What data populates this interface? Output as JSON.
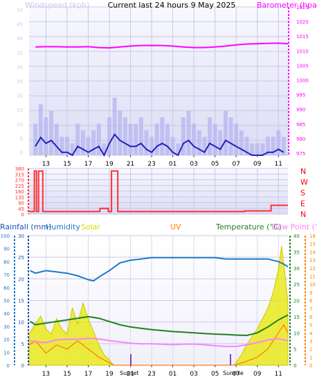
{
  "title": "Current last 24 hours 9 May 2025",
  "charts": [
    {
      "id": "wind_baro",
      "left_label": "Windspeed (kph)",
      "right_label": "Barometer (hpa)",
      "left_ticks": [
        "50",
        "45",
        "40",
        "35",
        "30",
        "25",
        "20",
        "15",
        "10",
        "5",
        "0"
      ],
      "right_ticks": [
        "1025",
        "1020",
        "1015",
        "1010",
        "1005",
        "1000",
        "995",
        "990",
        "985",
        "980",
        "975"
      ],
      "x_ticks": [
        "13",
        "15",
        "17",
        "19",
        "21",
        "23",
        "01",
        "03",
        "05",
        "07",
        "09",
        "11"
      ]
    },
    {
      "id": "direction",
      "left_ticks": [
        "360",
        "315",
        "270",
        "225",
        "180",
        "135",
        "90",
        "45",
        "0"
      ],
      "compass": [
        "N",
        "W",
        "S",
        "E",
        "N"
      ],
      "x_ticks": [
        "13",
        "15",
        "17",
        "19",
        "21",
        "23",
        "01",
        "03",
        "05",
        "07",
        "09",
        "11"
      ]
    },
    {
      "id": "rain_temp",
      "legend": {
        "rainfall": "Rainfall (mm)",
        "humidity": "Humidity",
        "solar": "Solar",
        "uv": "UV",
        "temperature": "Temperature (°C)",
        "dewpoint": "Dew Point (°C)"
      },
      "humidity_ticks": [
        "100",
        "90",
        "80",
        "70",
        "60",
        "50",
        "40",
        "30",
        "20",
        "10",
        "0"
      ],
      "rain_ticks": [
        "30",
        "25",
        "20",
        "15",
        "10",
        "5",
        "0"
      ],
      "temp_ticks": [
        "40",
        "35",
        "30",
        "25",
        "20",
        "15",
        "10",
        "5",
        "0"
      ],
      "uv_ticks": [
        "16",
        "15",
        "14",
        "13",
        "12",
        "11",
        "10",
        "9",
        "8",
        "7",
        "6",
        "5",
        "4",
        "3",
        "2",
        "1",
        "0"
      ],
      "x_ticks": [
        "13",
        "15",
        "17",
        "19",
        "21",
        "23",
        "01",
        "03",
        "05",
        "07",
        "09",
        "11"
      ],
      "sunset_label": "Sunset",
      "sunrise_label": "Sunrise"
    }
  ],
  "chart_data": [
    {
      "type": "line",
      "title": "Current last 24 hours 9 May 2025",
      "x_unit": "hour",
      "x_range": [
        11.4,
        35.9
      ],
      "y_left_range": [
        0,
        50
      ],
      "y_right_range": [
        975,
        1025
      ],
      "series": [
        {
          "name": "Windspeed (kph)",
          "axis": "left",
          "x": [
            12,
            12.5,
            13,
            13.5,
            14,
            14.5,
            15,
            15.5,
            16,
            16.5,
            17,
            17.5,
            18,
            18.5,
            19,
            19.5,
            20,
            20.5,
            21,
            21.5,
            22,
            22.5,
            23,
            23.5,
            24,
            24.5,
            25,
            25.5,
            26,
            26.5,
            27,
            27.5,
            28,
            28.5,
            29,
            29.5,
            30,
            30.5,
            31,
            31.5,
            32,
            32.5,
            33,
            33.5,
            34,
            34.5,
            35,
            35.5
          ],
          "values": [
            3,
            6,
            4,
            5,
            3,
            1,
            1,
            0,
            3,
            2,
            1,
            2,
            3,
            0,
            4,
            7,
            5,
            4,
            3,
            3,
            4,
            2,
            1,
            3,
            4,
            3,
            1,
            0,
            4,
            5,
            3,
            2,
            1,
            4,
            3,
            2,
            5,
            4,
            3,
            2,
            1,
            0,
            0,
            0,
            1,
            1,
            2,
            1
          ],
          "color": "#2020c0"
        },
        {
          "name": "Barometer (hpa)",
          "axis": "right",
          "x": [
            12,
            13,
            14,
            15,
            16,
            17,
            18,
            19,
            20,
            21,
            22,
            23,
            24,
            25,
            26,
            27,
            28,
            29,
            30,
            31,
            32,
            33,
            34,
            35,
            35.9
          ],
          "values": [
            1011.5,
            1011.6,
            1011.6,
            1011.5,
            1011.5,
            1011.6,
            1011.3,
            1011.2,
            1011.5,
            1011.8,
            1012.0,
            1012.0,
            1012.0,
            1011.8,
            1011.5,
            1011.3,
            1011.3,
            1011.5,
            1011.8,
            1012.2,
            1012.5,
            1012.6,
            1012.7,
            1012.8,
            1012.6
          ],
          "color": "#ff00ff"
        }
      ]
    },
    {
      "type": "line",
      "title": "",
      "x_unit": "hour",
      "x_range": [
        11.4,
        35.9
      ],
      "y_range": [
        0,
        360
      ],
      "series": [
        {
          "name": "",
          "x": [
            11.4,
            11.9,
            11.9,
            12.1,
            12.1,
            12.3,
            12.3,
            12.7,
            12.7,
            12.9,
            12.9,
            13.3,
            13.3,
            14.7,
            14.7,
            18.1,
            18.1,
            18.9,
            18.9,
            19.2,
            19.2,
            19.8,
            19.8,
            20.0,
            20.0,
            31.8,
            31.8,
            34.3,
            34.3,
            35.9
          ],
          "values": [
            20,
            20,
            340,
            340,
            20,
            20,
            340,
            340,
            20,
            20,
            20,
            20,
            20,
            20,
            20,
            20,
            45,
            45,
            20,
            20,
            340,
            340,
            20,
            20,
            20,
            20,
            25,
            25,
            70,
            70
          ],
          "color": "#ff3030"
        }
      ]
    },
    {
      "type": "line",
      "title": "",
      "x_unit": "hour",
      "x_range": [
        11.4,
        35.9
      ],
      "y_temp_range": [
        0,
        40
      ],
      "y_humidity_range": [
        0,
        100
      ],
      "series": [
        {
          "name": "Humidity",
          "x": [
            11.5,
            12,
            13,
            14,
            15,
            16,
            17,
            17.5,
            18,
            19,
            20,
            21,
            22,
            23,
            24,
            25,
            26,
            27,
            28,
            29,
            30,
            31,
            32,
            33,
            34,
            35,
            35.5,
            35.9
          ],
          "values": [
            73,
            71,
            73,
            72,
            71,
            69,
            66,
            65,
            68,
            73,
            79,
            81,
            82,
            83,
            83,
            83,
            83,
            83,
            83,
            83,
            82,
            82,
            82,
            82,
            82,
            80,
            78,
            76
          ],
          "color": "#1e78c8"
        },
        {
          "name": "Temperature (°C)",
          "x": [
            11.5,
            12,
            13,
            14,
            15,
            16,
            17,
            18,
            19,
            20,
            21,
            22,
            23,
            24,
            25,
            26,
            27,
            28,
            29,
            30,
            31,
            32,
            33,
            34,
            35,
            35.9
          ],
          "values": [
            13.5,
            12.5,
            13,
            13.5,
            14,
            14.5,
            15,
            14.5,
            13.5,
            12.5,
            11.8,
            11.4,
            11.0,
            10.7,
            10.4,
            10.2,
            10.0,
            9.8,
            9.6,
            9.5,
            9.3,
            9.2,
            10.0,
            11.8,
            14.0,
            15.5
          ],
          "color": "#208020"
        },
        {
          "name": "Dew Point (°C)",
          "x": [
            11.5,
            12,
            13,
            14,
            15,
            16,
            17,
            18,
            19,
            20,
            21,
            22,
            23,
            24,
            25,
            26,
            27,
            28,
            29,
            30,
            31,
            32,
            33,
            34,
            35,
            35.9
          ],
          "values": [
            7.5,
            7.2,
            7.0,
            7.8,
            8.0,
            8.0,
            8.3,
            8.1,
            7.6,
            7.2,
            6.8,
            6.6,
            6.6,
            6.5,
            6.3,
            6.5,
            6.5,
            6.3,
            6.0,
            5.8,
            5.8,
            6.3,
            7.0,
            7.8,
            8.2,
            7.6
          ],
          "color": "#ff80ff"
        },
        {
          "name": "Solar",
          "x": [
            11.4,
            12,
            12.5,
            13,
            13.5,
            14,
            14.5,
            15,
            15.5,
            16,
            16.5,
            17,
            17.5,
            18,
            18.5,
            19,
            19.4,
            30.8,
            31.5,
            32,
            32.5,
            33,
            33.5,
            34,
            34.5,
            35,
            35.3,
            35.6,
            35.9
          ],
          "values": [
            12,
            16,
            19,
            14,
            12,
            18,
            14,
            12,
            22,
            16,
            24,
            18,
            13,
            8,
            4,
            2,
            0,
            0,
            4,
            8,
            11,
            14,
            18,
            22,
            28,
            37,
            46,
            36,
            24
          ],
          "color": "#d8d800"
        },
        {
          "name": "UV",
          "x": [
            11.4,
            12,
            13,
            14,
            15,
            16,
            17,
            18,
            19,
            19.4,
            30.8,
            32,
            33,
            34,
            35,
            35.5,
            35.9
          ],
          "values": [
            2.5,
            3,
            1.5,
            2.5,
            2,
            3,
            2,
            1,
            0.3,
            0,
            0,
            0.5,
            1,
            2,
            4,
            5,
            4
          ],
          "color": "#ff8000"
        }
      ]
    }
  ]
}
